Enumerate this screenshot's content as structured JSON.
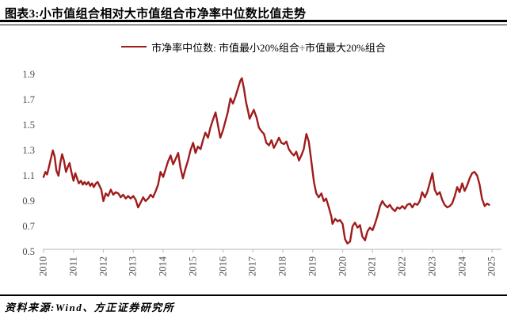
{
  "figure": {
    "title": "图表3:小市值组合相对大市值组合市净率中位数比值走势",
    "source": "资料来源:Wind、方正证券研究所"
  },
  "legend": {
    "label": "市净率中位数: 市值最小20%组合÷市值最大20%组合"
  },
  "colors": {
    "line": "#A01C1C",
    "axis": "#c3c3c3",
    "tick_text": "#4d4d4d"
  },
  "chart_data": {
    "type": "line",
    "title": "图表3:小市值组合相对大市值组合市净率中位数比值走势",
    "xlabel": "",
    "ylabel": "",
    "grid": false,
    "legend_position": "top",
    "xlim": [
      2010,
      2025.3
    ],
    "ylim": [
      0.5,
      1.9
    ],
    "x_ticks": [
      "2010",
      "2011",
      "2012",
      "2013",
      "2014",
      "2015",
      "2016",
      "2017",
      "2018",
      "2019",
      "2020",
      "2021",
      "2022",
      "2023",
      "2024",
      "2025"
    ],
    "y_ticks": [
      "0.5",
      "0.7",
      "0.9",
      "1.1",
      "1.3",
      "1.5",
      "1.7",
      "1.9"
    ],
    "series": [
      {
        "name": "市净率中位数: 市值最小20%组合÷市值最大20%组合",
        "points": [
          [
            2010.0,
            1.09
          ],
          [
            2010.06,
            1.13
          ],
          [
            2010.12,
            1.11
          ],
          [
            2010.18,
            1.17
          ],
          [
            2010.25,
            1.24
          ],
          [
            2010.31,
            1.3
          ],
          [
            2010.37,
            1.25
          ],
          [
            2010.43,
            1.14
          ],
          [
            2010.5,
            1.1
          ],
          [
            2010.56,
            1.2
          ],
          [
            2010.62,
            1.27
          ],
          [
            2010.68,
            1.22
          ],
          [
            2010.75,
            1.13
          ],
          [
            2010.81,
            1.17
          ],
          [
            2010.87,
            1.2
          ],
          [
            2010.93,
            1.13
          ],
          [
            2011.0,
            1.06
          ],
          [
            2011.06,
            1.12
          ],
          [
            2011.12,
            1.08
          ],
          [
            2011.18,
            1.04
          ],
          [
            2011.25,
            1.06
          ],
          [
            2011.31,
            1.03
          ],
          [
            2011.37,
            1.05
          ],
          [
            2011.43,
            1.03
          ],
          [
            2011.5,
            1.05
          ],
          [
            2011.56,
            1.02
          ],
          [
            2011.62,
            1.04
          ],
          [
            2011.68,
            1.01
          ],
          [
            2011.75,
            1.04
          ],
          [
            2011.81,
            1.05
          ],
          [
            2011.87,
            1.02
          ],
          [
            2011.93,
            0.99
          ],
          [
            2012.0,
            0.9
          ],
          [
            2012.08,
            0.96
          ],
          [
            2012.16,
            0.94
          ],
          [
            2012.25,
            0.99
          ],
          [
            2012.33,
            0.95
          ],
          [
            2012.41,
            0.97
          ],
          [
            2012.5,
            0.96
          ],
          [
            2012.58,
            0.93
          ],
          [
            2012.66,
            0.95
          ],
          [
            2012.75,
            0.92
          ],
          [
            2012.83,
            0.94
          ],
          [
            2012.91,
            0.92
          ],
          [
            2013.0,
            0.94
          ],
          [
            2013.08,
            0.91
          ],
          [
            2013.16,
            0.85
          ],
          [
            2013.25,
            0.89
          ],
          [
            2013.33,
            0.93
          ],
          [
            2013.41,
            0.9
          ],
          [
            2013.5,
            0.92
          ],
          [
            2013.58,
            0.95
          ],
          [
            2013.66,
            0.93
          ],
          [
            2013.75,
            0.98
          ],
          [
            2013.83,
            1.03
          ],
          [
            2013.91,
            1.13
          ],
          [
            2014.0,
            1.09
          ],
          [
            2014.08,
            1.15
          ],
          [
            2014.16,
            1.21
          ],
          [
            2014.25,
            1.26
          ],
          [
            2014.33,
            1.19
          ],
          [
            2014.41,
            1.23
          ],
          [
            2014.5,
            1.28
          ],
          [
            2014.58,
            1.16
          ],
          [
            2014.66,
            1.08
          ],
          [
            2014.75,
            1.16
          ],
          [
            2014.83,
            1.22
          ],
          [
            2014.91,
            1.3
          ],
          [
            2015.0,
            1.36
          ],
          [
            2015.08,
            1.28
          ],
          [
            2015.16,
            1.33
          ],
          [
            2015.25,
            1.31
          ],
          [
            2015.33,
            1.38
          ],
          [
            2015.41,
            1.44
          ],
          [
            2015.5,
            1.4
          ],
          [
            2015.58,
            1.48
          ],
          [
            2015.66,
            1.54
          ],
          [
            2015.75,
            1.6
          ],
          [
            2015.83,
            1.5
          ],
          [
            2015.91,
            1.4
          ],
          [
            2016.0,
            1.46
          ],
          [
            2016.08,
            1.53
          ],
          [
            2016.16,
            1.6
          ],
          [
            2016.25,
            1.71
          ],
          [
            2016.33,
            1.67
          ],
          [
            2016.41,
            1.72
          ],
          [
            2016.5,
            1.79
          ],
          [
            2016.58,
            1.85
          ],
          [
            2016.63,
            1.87
          ],
          [
            2016.7,
            1.79
          ],
          [
            2016.77,
            1.68
          ],
          [
            2016.83,
            1.62
          ],
          [
            2016.89,
            1.55
          ],
          [
            2016.95,
            1.58
          ],
          [
            2017.03,
            1.62
          ],
          [
            2017.12,
            1.56
          ],
          [
            2017.2,
            1.48
          ],
          [
            2017.29,
            1.45
          ],
          [
            2017.37,
            1.43
          ],
          [
            2017.45,
            1.36
          ],
          [
            2017.54,
            1.34
          ],
          [
            2017.62,
            1.38
          ],
          [
            2017.7,
            1.32
          ],
          [
            2017.79,
            1.36
          ],
          [
            2017.87,
            1.4
          ],
          [
            2017.95,
            1.36
          ],
          [
            2018.04,
            1.35
          ],
          [
            2018.12,
            1.37
          ],
          [
            2018.2,
            1.31
          ],
          [
            2018.29,
            1.28
          ],
          [
            2018.37,
            1.26
          ],
          [
            2018.45,
            1.29
          ],
          [
            2018.54,
            1.22
          ],
          [
            2018.62,
            1.26
          ],
          [
            2018.7,
            1.31
          ],
          [
            2018.79,
            1.43
          ],
          [
            2018.87,
            1.37
          ],
          [
            2018.95,
            1.22
          ],
          [
            2019.04,
            1.05
          ],
          [
            2019.12,
            0.96
          ],
          [
            2019.2,
            0.93
          ],
          [
            2019.29,
            0.96
          ],
          [
            2019.37,
            0.9
          ],
          [
            2019.45,
            0.92
          ],
          [
            2019.54,
            0.85
          ],
          [
            2019.62,
            0.78
          ],
          [
            2019.66,
            0.72
          ],
          [
            2019.75,
            0.76
          ],
          [
            2019.83,
            0.74
          ],
          [
            2019.91,
            0.75
          ],
          [
            2020.0,
            0.72
          ],
          [
            2020.08,
            0.6
          ],
          [
            2020.16,
            0.565
          ],
          [
            2020.25,
            0.58
          ],
          [
            2020.33,
            0.7
          ],
          [
            2020.41,
            0.73
          ],
          [
            2020.5,
            0.69
          ],
          [
            2020.58,
            0.71
          ],
          [
            2020.66,
            0.62
          ],
          [
            2020.75,
            0.59
          ],
          [
            2020.83,
            0.66
          ],
          [
            2020.91,
            0.69
          ],
          [
            2021.0,
            0.67
          ],
          [
            2021.08,
            0.72
          ],
          [
            2021.16,
            0.78
          ],
          [
            2021.25,
            0.86
          ],
          [
            2021.33,
            0.9
          ],
          [
            2021.41,
            0.87
          ],
          [
            2021.5,
            0.85
          ],
          [
            2021.58,
            0.87
          ],
          [
            2021.66,
            0.84
          ],
          [
            2021.75,
            0.82
          ],
          [
            2021.83,
            0.85
          ],
          [
            2021.91,
            0.84
          ],
          [
            2022.0,
            0.86
          ],
          [
            2022.08,
            0.84
          ],
          [
            2022.16,
            0.87
          ],
          [
            2022.25,
            0.88
          ],
          [
            2022.33,
            0.85
          ],
          [
            2022.41,
            0.88
          ],
          [
            2022.5,
            0.87
          ],
          [
            2022.58,
            0.9
          ],
          [
            2022.66,
            0.97
          ],
          [
            2022.75,
            0.93
          ],
          [
            2022.83,
            0.97
          ],
          [
            2022.91,
            1.04
          ],
          [
            2023.0,
            1.12
          ],
          [
            2023.08,
            0.99
          ],
          [
            2023.16,
            0.95
          ],
          [
            2023.25,
            0.97
          ],
          [
            2023.33,
            0.91
          ],
          [
            2023.41,
            0.87
          ],
          [
            2023.5,
            0.85
          ],
          [
            2023.58,
            0.86
          ],
          [
            2023.66,
            0.88
          ],
          [
            2023.75,
            0.94
          ],
          [
            2023.83,
            1.01
          ],
          [
            2023.91,
            0.97
          ],
          [
            2024.0,
            1.04
          ],
          [
            2024.08,
            0.98
          ],
          [
            2024.16,
            1.02
          ],
          [
            2024.25,
            1.08
          ],
          [
            2024.33,
            1.12
          ],
          [
            2024.41,
            1.13
          ],
          [
            2024.5,
            1.1
          ],
          [
            2024.58,
            1.03
          ],
          [
            2024.66,
            0.92
          ],
          [
            2024.75,
            0.86
          ],
          [
            2024.83,
            0.88
          ],
          [
            2024.9,
            0.87
          ]
        ]
      }
    ]
  }
}
